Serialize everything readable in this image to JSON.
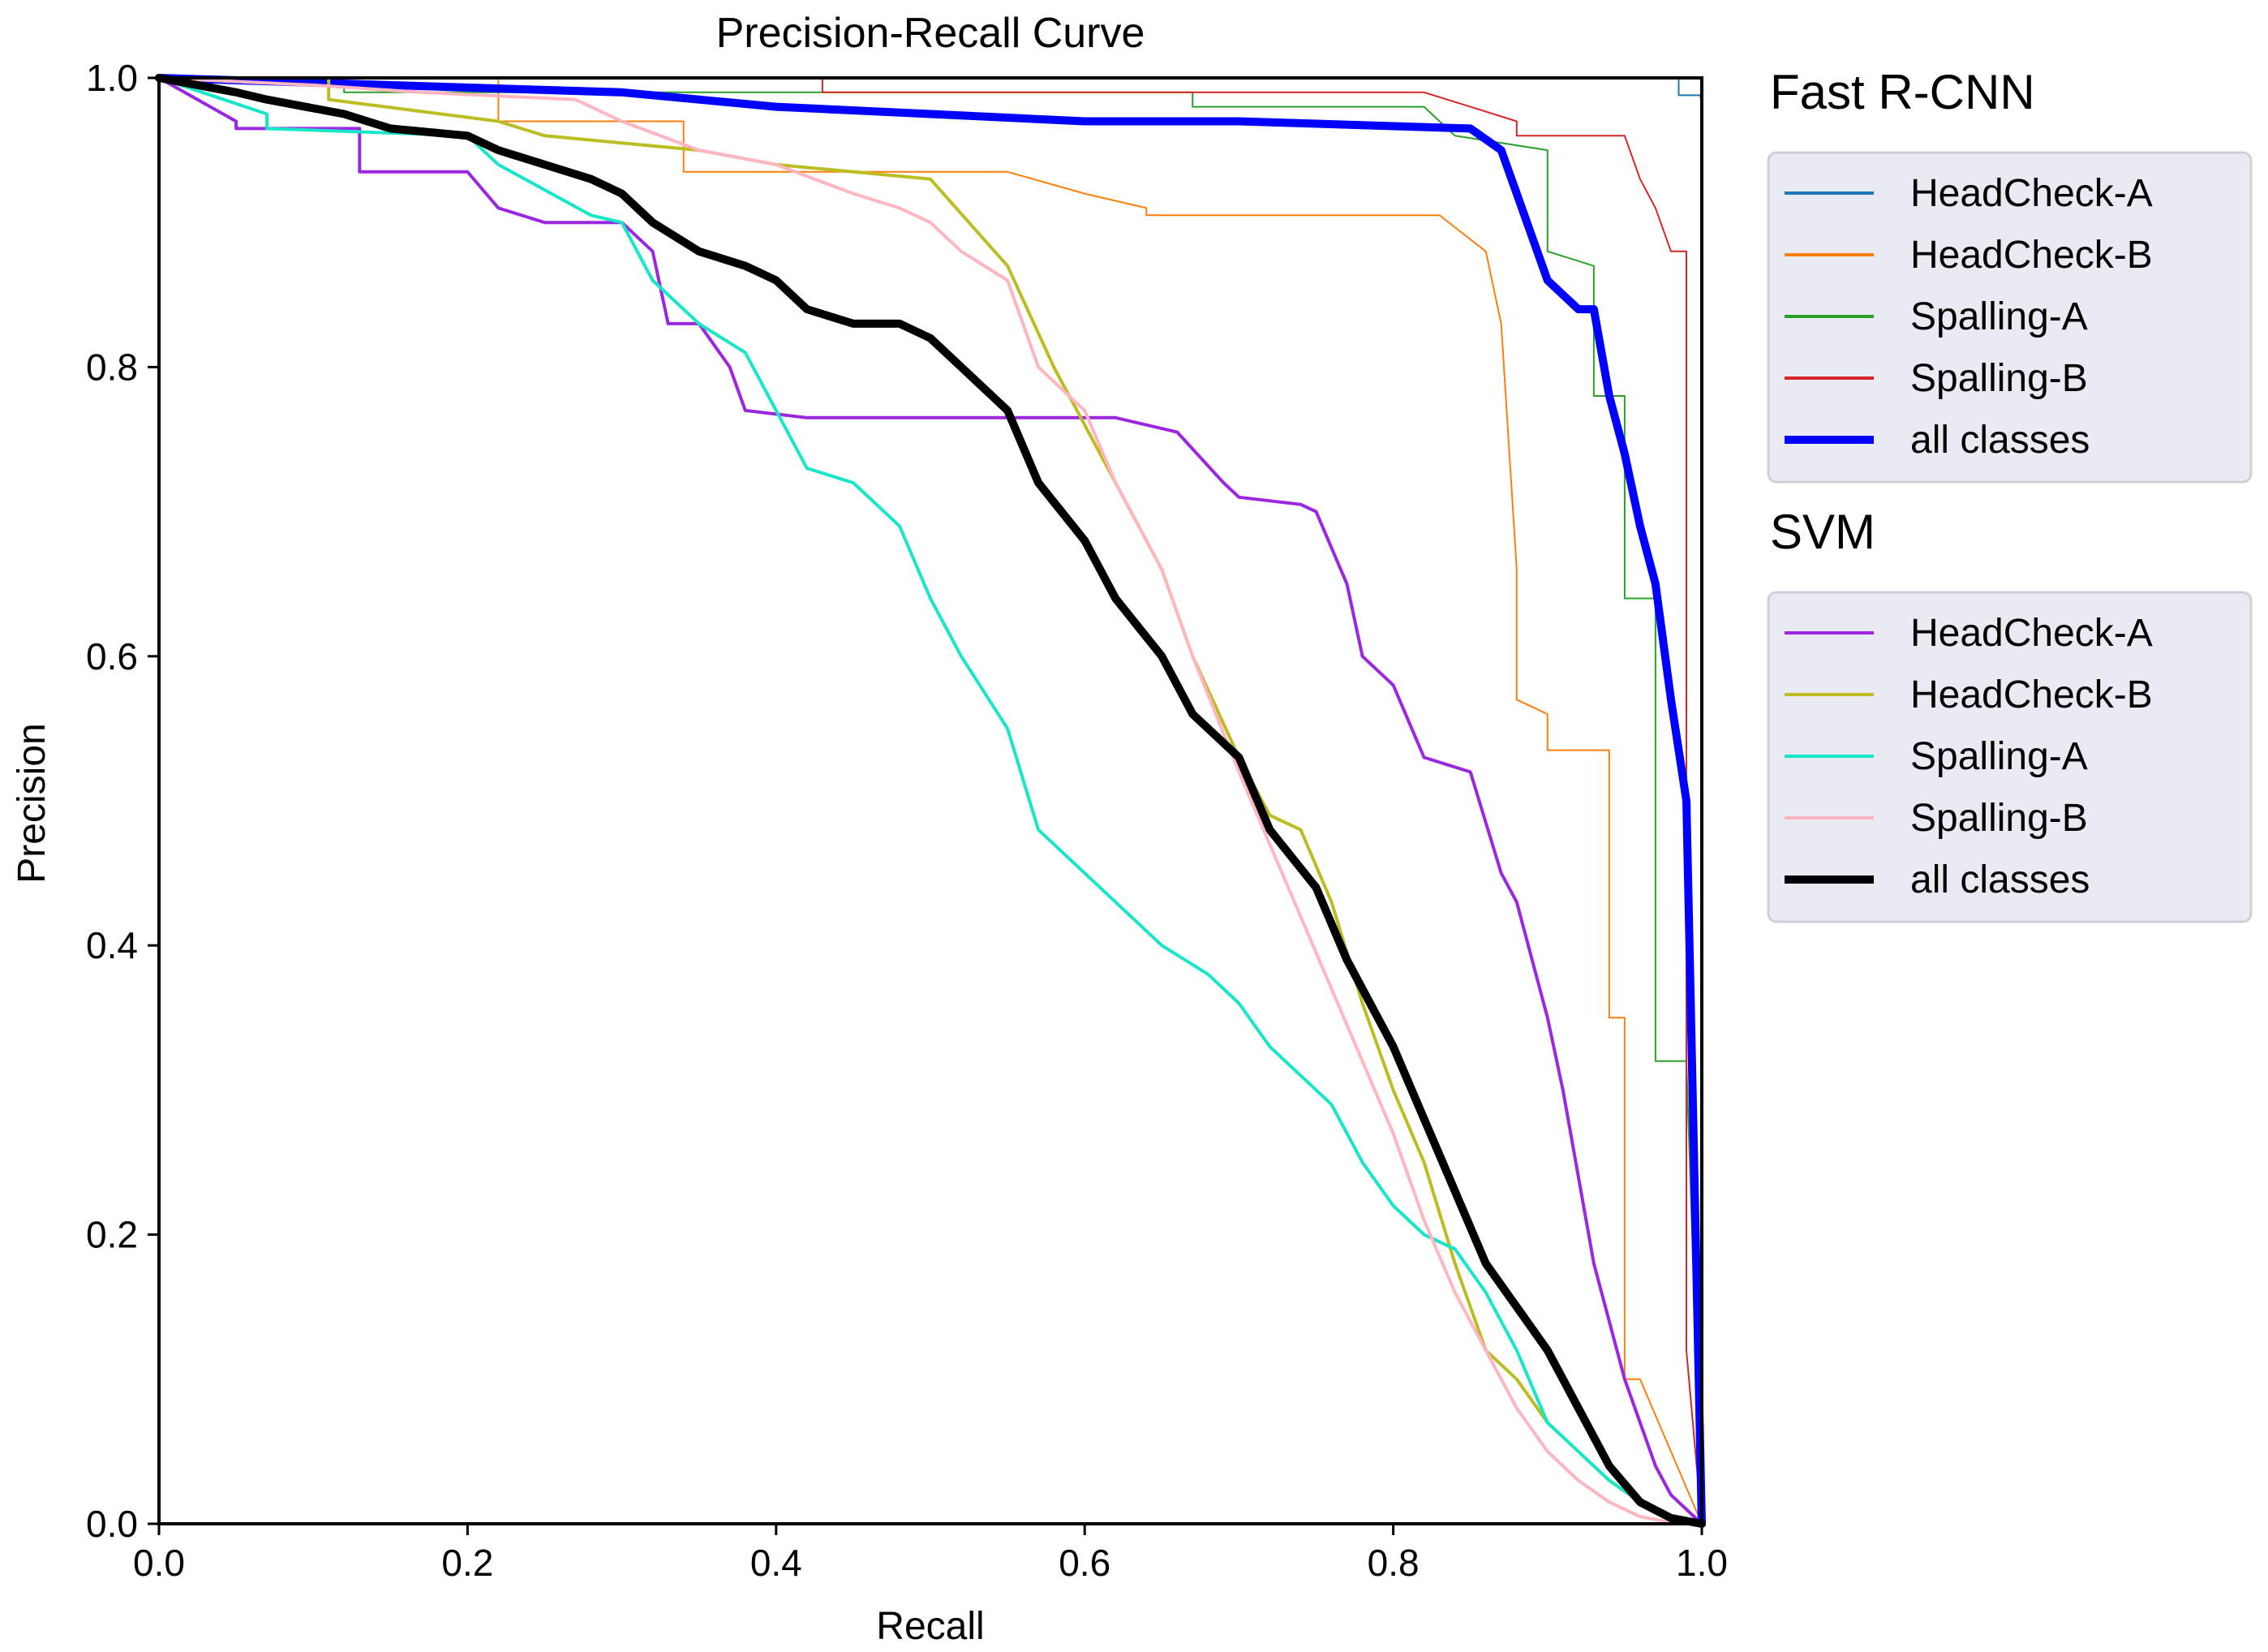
{
  "chart_data": {
    "type": "line",
    "title": "Precision-Recall Curve",
    "xlabel": "Recall",
    "ylabel": "Precision",
    "xlim": [
      0.0,
      1.0
    ],
    "ylim": [
      0.0,
      1.0
    ],
    "xticks": [
      "0.0",
      "0.2",
      "0.4",
      "0.6",
      "0.8",
      "1.0"
    ],
    "yticks": [
      "0.0",
      "0.2",
      "0.4",
      "0.6",
      "0.8",
      "1.0"
    ],
    "grid": false,
    "legend_placement": "right-outside",
    "groups": [
      {
        "name": "Fast R-CNN",
        "series": [
          {
            "name": "HeadCheck-A",
            "color": "#1f77b4",
            "width": 2,
            "x": [
              0,
              0.985,
              0.985,
              0.999,
              1.0,
              1.0
            ],
            "y": [
              1.0,
              1.0,
              0.988,
              0.988,
              0.98,
              0.0
            ]
          },
          {
            "name": "HeadCheck-B",
            "color": "#ff7f0e",
            "width": 2,
            "x": [
              0,
              0.22,
              0.22,
              0.34,
              0.34,
              0.55,
              0.6,
              0.64,
              0.64,
              0.83,
              0.86,
              0.87,
              0.88,
              0.88,
              0.9,
              0.9,
              0.91,
              0.91,
              0.94,
              0.94,
              0.95,
              0.95,
              0.96,
              1.0
            ],
            "y": [
              1.0,
              1.0,
              0.97,
              0.97,
              0.935,
              0.935,
              0.92,
              0.91,
              0.905,
              0.905,
              0.88,
              0.83,
              0.66,
              0.57,
              0.56,
              0.535,
              0.535,
              0.535,
              0.535,
              0.35,
              0.35,
              0.1,
              0.1,
              0.0
            ],
            "points_note": ""
          },
          {
            "name": "Spalling-A",
            "color": "#2ca02c",
            "width": 2,
            "x": [
              0,
              0.12,
              0.12,
              0.67,
              0.67,
              0.82,
              0.84,
              0.9,
              0.9,
              0.93,
              0.93,
              0.95,
              0.95,
              0.97,
              0.97,
              0.99,
              1.0
            ],
            "y": [
              1.0,
              1.0,
              0.99,
              0.99,
              0.98,
              0.98,
              0.96,
              0.95,
              0.88,
              0.87,
              0.78,
              0.78,
              0.64,
              0.64,
              0.32,
              0.32,
              0.0
            ]
          },
          {
            "name": "Spalling-B",
            "color": "#d62728",
            "width": 2,
            "x": [
              0,
              0.43,
              0.43,
              0.82,
              0.85,
              0.88,
              0.88,
              0.95,
              0.96,
              0.97,
              0.98,
              0.98,
              0.99,
              0.99,
              1.0
            ],
            "y": [
              1.0,
              1.0,
              0.99,
              0.99,
              0.98,
              0.97,
              0.96,
              0.96,
              0.93,
              0.91,
              0.88,
              0.88,
              0.88,
              0.12,
              0.0
            ]
          },
          {
            "name": "all classes",
            "color": "#0000ff",
            "width": 10,
            "x": [
              0,
              0.3,
              0.4,
              0.5,
              0.6,
              0.7,
              0.85,
              0.87,
              0.88,
              0.89,
              0.9,
              0.92,
              0.93,
              0.94,
              0.95,
              0.96,
              0.97,
              0.98,
              0.99,
              1.0
            ],
            "y": [
              1.0,
              0.99,
              0.98,
              0.975,
              0.97,
              0.97,
              0.965,
              0.95,
              0.92,
              0.89,
              0.86,
              0.84,
              0.84,
              0.78,
              0.74,
              0.69,
              0.65,
              0.57,
              0.5,
              0.0
            ]
          }
        ]
      },
      {
        "name": "SVM",
        "series": [
          {
            "name": "HeadCheck-A",
            "color": "#9b27e0",
            "width": 4,
            "x": [
              0,
              0.05,
              0.05,
              0.13,
              0.13,
              0.2,
              0.22,
              0.25,
              0.3,
              0.32,
              0.33,
              0.35,
              0.37,
              0.38,
              0.42,
              0.62,
              0.64,
              0.66,
              0.69,
              0.7,
              0.74,
              0.75,
              0.77,
              0.78,
              0.8,
              0.82,
              0.85,
              0.87,
              0.88,
              0.9,
              0.91,
              0.93,
              0.95,
              0.97,
              0.98,
              1.0
            ],
            "y": [
              1.0,
              0.97,
              0.965,
              0.965,
              0.935,
              0.935,
              0.91,
              0.9,
              0.9,
              0.88,
              0.83,
              0.83,
              0.8,
              0.77,
              0.765,
              0.765,
              0.76,
              0.755,
              0.72,
              0.71,
              0.705,
              0.7,
              0.65,
              0.6,
              0.58,
              0.53,
              0.52,
              0.45,
              0.43,
              0.35,
              0.3,
              0.18,
              0.1,
              0.04,
              0.02,
              0.0
            ]
          },
          {
            "name": "HeadCheck-B",
            "color": "#bcbd22",
            "width": 4,
            "x": [
              0,
              0.11,
              0.11,
              0.22,
              0.25,
              0.3,
              0.35,
              0.4,
              0.45,
              0.5,
              0.55,
              0.58,
              0.6,
              0.63,
              0.65,
              0.67,
              0.7,
              0.72,
              0.74,
              0.76,
              0.78,
              0.8,
              0.82,
              0.84,
              0.86,
              0.88,
              0.9,
              0.92,
              0.94,
              0.96,
              0.98,
              1.0
            ],
            "y": [
              1.0,
              1.0,
              0.985,
              0.97,
              0.96,
              0.955,
              0.95,
              0.94,
              0.935,
              0.93,
              0.87,
              0.8,
              0.76,
              0.7,
              0.66,
              0.6,
              0.53,
              0.49,
              0.48,
              0.43,
              0.36,
              0.3,
              0.25,
              0.18,
              0.12,
              0.1,
              0.07,
              0.05,
              0.03,
              0.015,
              0.005,
              0.0
            ]
          },
          {
            "name": "Spalling-A",
            "color": "#17e6c8",
            "width": 4,
            "x": [
              0,
              0.07,
              0.07,
              0.2,
              0.22,
              0.28,
              0.3,
              0.32,
              0.35,
              0.38,
              0.4,
              0.42,
              0.45,
              0.48,
              0.5,
              0.52,
              0.55,
              0.57,
              0.6,
              0.62,
              0.65,
              0.68,
              0.7,
              0.72,
              0.74,
              0.76,
              0.78,
              0.8,
              0.82,
              0.84,
              0.86,
              0.88,
              0.9,
              0.92,
              0.94,
              0.96,
              0.98,
              1.0
            ],
            "y": [
              1.0,
              0.975,
              0.965,
              0.96,
              0.94,
              0.905,
              0.9,
              0.86,
              0.83,
              0.81,
              0.77,
              0.73,
              0.72,
              0.69,
              0.64,
              0.6,
              0.55,
              0.48,
              0.45,
              0.43,
              0.4,
              0.38,
              0.36,
              0.33,
              0.31,
              0.29,
              0.25,
              0.22,
              0.2,
              0.19,
              0.16,
              0.12,
              0.07,
              0.05,
              0.03,
              0.015,
              0.005,
              0.0
            ]
          },
          {
            "name": "Spalling-B",
            "color": "#ffb6c1",
            "width": 4,
            "x": [
              0,
              0.1,
              0.17,
              0.17,
              0.27,
              0.3,
              0.35,
              0.4,
              0.45,
              0.48,
              0.5,
              0.52,
              0.55,
              0.57,
              0.6,
              0.62,
              0.65,
              0.67,
              0.7,
              0.72,
              0.74,
              0.76,
              0.78,
              0.8,
              0.82,
              0.84,
              0.86,
              0.88,
              0.9,
              0.92,
              0.94,
              0.96,
              0.98,
              1.0
            ],
            "y": [
              1.0,
              0.995,
              0.99,
              0.99,
              0.985,
              0.97,
              0.95,
              0.94,
              0.92,
              0.91,
              0.9,
              0.88,
              0.86,
              0.8,
              0.77,
              0.72,
              0.66,
              0.6,
              0.52,
              0.47,
              0.42,
              0.37,
              0.32,
              0.27,
              0.21,
              0.16,
              0.12,
              0.08,
              0.05,
              0.03,
              0.015,
              0.005,
              0.001,
              0.0
            ]
          },
          {
            "name": "all classes",
            "color": "#000000",
            "width": 10,
            "x": [
              0,
              0.05,
              0.07,
              0.12,
              0.15,
              0.2,
              0.22,
              0.25,
              0.28,
              0.3,
              0.32,
              0.35,
              0.38,
              0.4,
              0.42,
              0.45,
              0.48,
              0.5,
              0.52,
              0.55,
              0.57,
              0.6,
              0.62,
              0.65,
              0.67,
              0.7,
              0.72,
              0.75,
              0.77,
              0.8,
              0.82,
              0.84,
              0.86,
              0.88,
              0.9,
              0.92,
              0.94,
              0.96,
              0.98,
              1.0
            ],
            "y": [
              1.0,
              0.99,
              0.985,
              0.975,
              0.965,
              0.96,
              0.95,
              0.94,
              0.93,
              0.92,
              0.9,
              0.88,
              0.87,
              0.86,
              0.84,
              0.83,
              0.83,
              0.82,
              0.8,
              0.77,
              0.72,
              0.68,
              0.64,
              0.6,
              0.56,
              0.53,
              0.48,
              0.44,
              0.39,
              0.33,
              0.28,
              0.23,
              0.18,
              0.15,
              0.12,
              0.08,
              0.04,
              0.015,
              0.004,
              0.0
            ]
          }
        ]
      }
    ]
  }
}
